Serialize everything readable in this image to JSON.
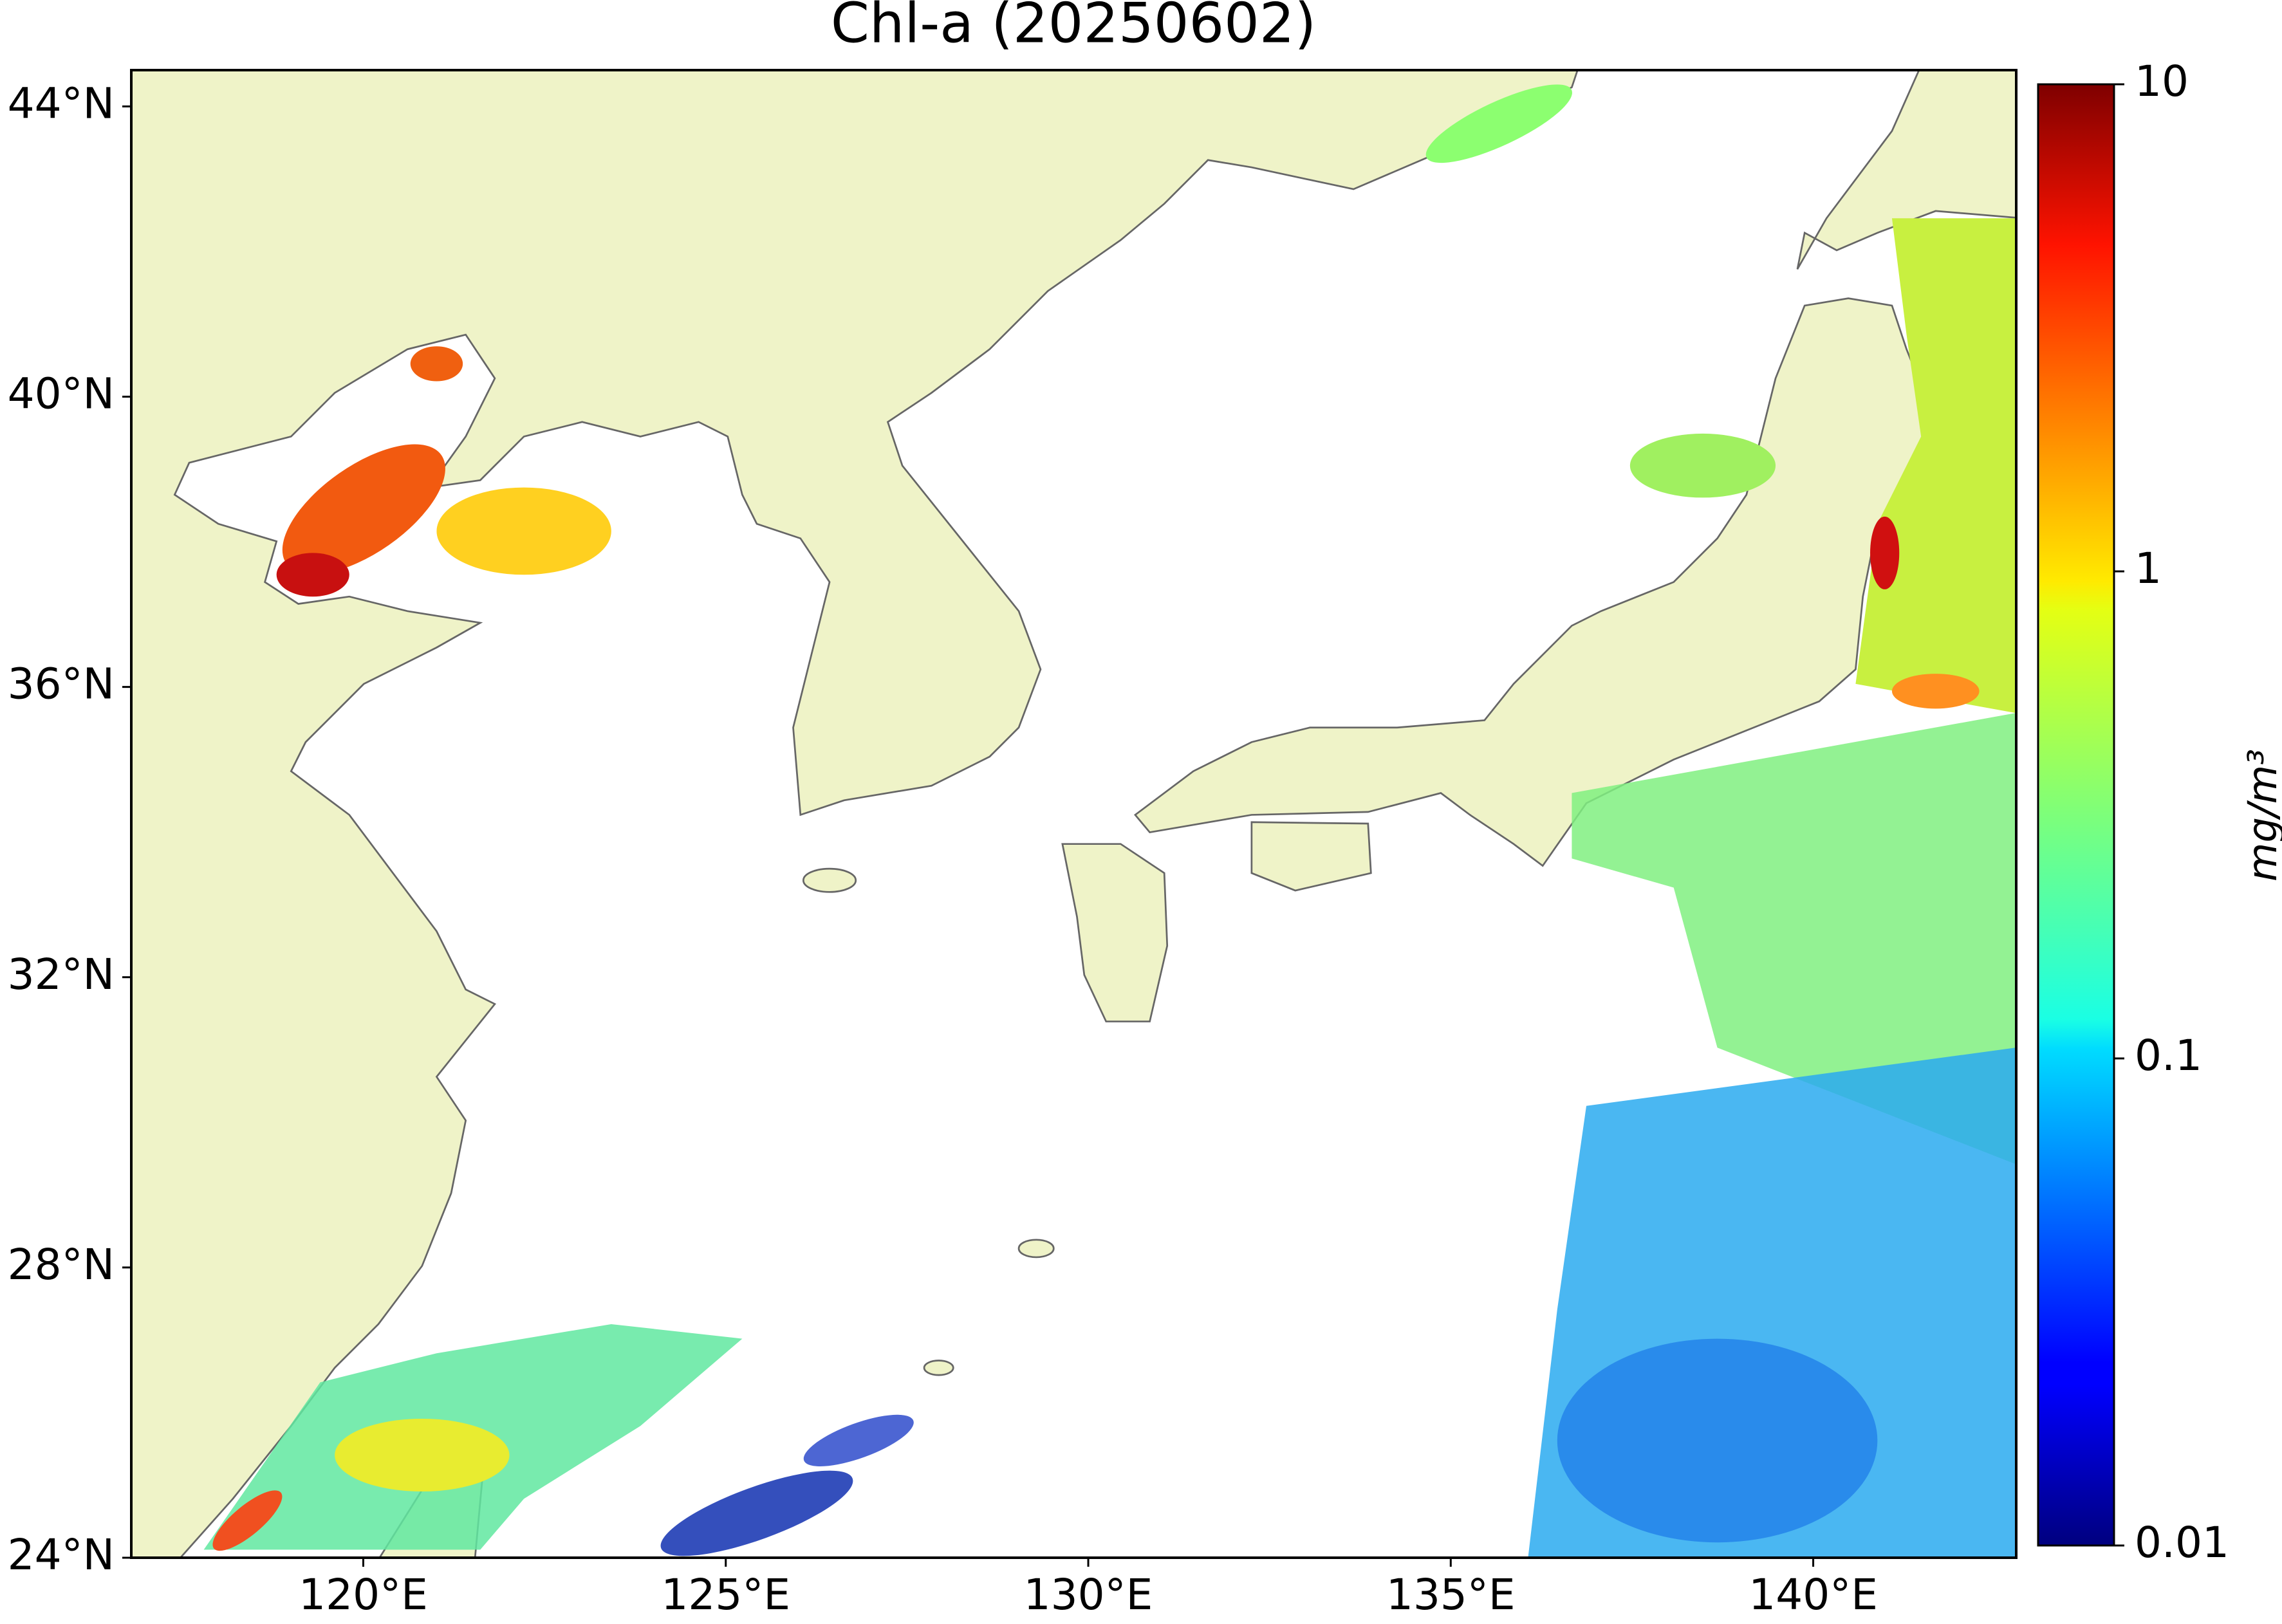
{
  "chart_data": {
    "type": "map",
    "title": "Chl-a (20250602)",
    "xlim": [
      116.8,
      142.8
    ],
    "ylim": [
      24,
      44.5
    ],
    "xticks": [
      {
        "value": 120,
        "label": "120°E"
      },
      {
        "value": 125,
        "label": "125°E"
      },
      {
        "value": 130,
        "label": "130°E"
      },
      {
        "value": 135,
        "label": "135°E"
      },
      {
        "value": 140,
        "label": "140°E"
      }
    ],
    "yticks": [
      {
        "value": 24,
        "label": "24°N"
      },
      {
        "value": 28,
        "label": "28°N"
      },
      {
        "value": 32,
        "label": "32°N"
      },
      {
        "value": 36,
        "label": "36°N"
      },
      {
        "value": 40,
        "label": "40°N"
      },
      {
        "value": 44,
        "label": "44°N"
      }
    ],
    "colorbar": {
      "label": "mg/m³",
      "log_scale": true,
      "colormap": "jet",
      "lim": [
        0.01,
        10
      ],
      "ticks": [
        0.01,
        0.1,
        1,
        10
      ]
    },
    "land_color": "#eff3c8"
  }
}
